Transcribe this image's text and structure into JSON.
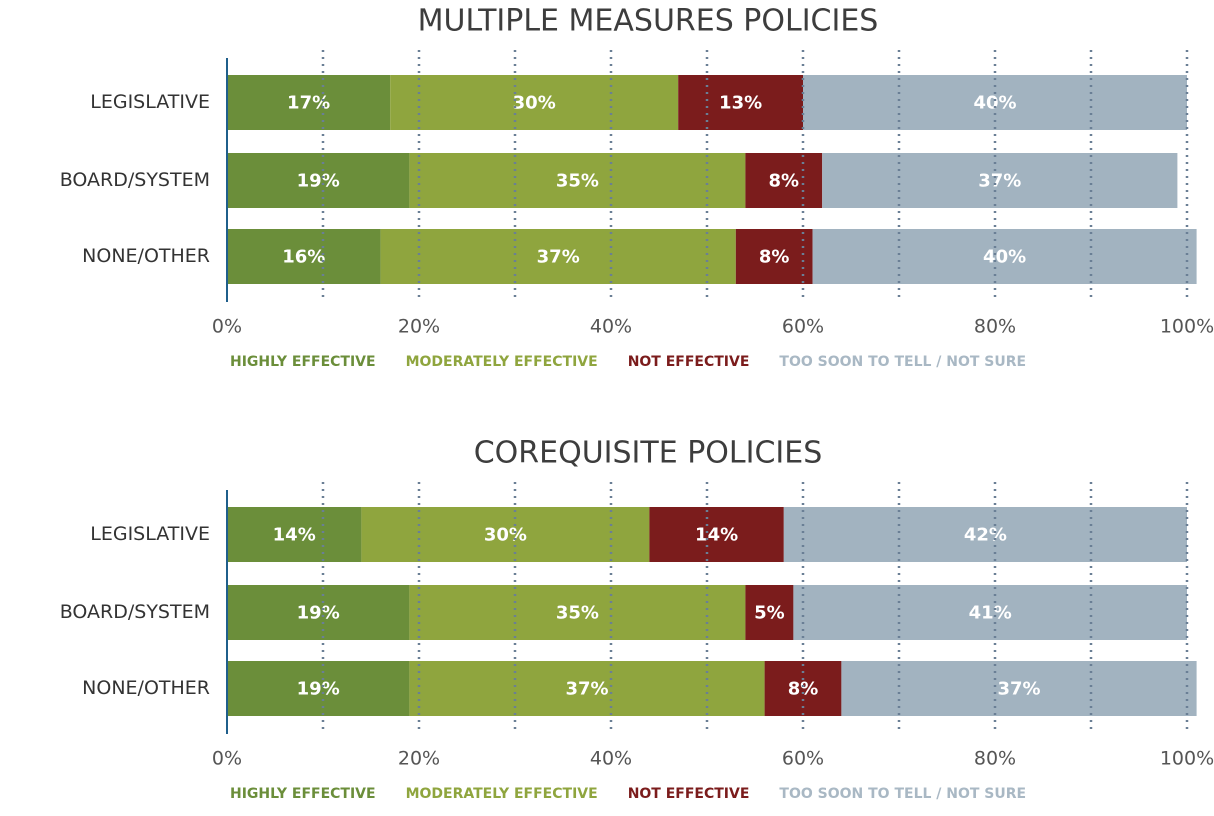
{
  "chart_data": [
    {
      "type": "bar",
      "orientation": "horizontal",
      "stacked": true,
      "title": "MULTIPLE MEASURES POLICIES",
      "categories": [
        "LEGISLATIVE",
        "BOARD/SYSTEM",
        "NONE/OTHER"
      ],
      "series": [
        {
          "name": "HIGHLY EFFECTIVE",
          "color": "#6b8e3a",
          "values": [
            17,
            19,
            16
          ],
          "value_labels": [
            "17%",
            "19%",
            "16%"
          ]
        },
        {
          "name": "MODERATELY EFFECTIVE",
          "color": "#8fa53e",
          "values": [
            30,
            35,
            37
          ],
          "value_labels": [
            "30%",
            "35%",
            "37%"
          ]
        },
        {
          "name": "NOT EFFECTIVE",
          "color": "#7b1c1c",
          "values": [
            13,
            8,
            8
          ],
          "value_labels": [
            "13%",
            "8%",
            "8%"
          ]
        },
        {
          "name": "TOO SOON TO TELL / NOT SURE",
          "color": "#a2b3c0",
          "values": [
            40,
            37,
            40
          ],
          "value_labels": [
            "40%",
            "37%",
            "40%"
          ]
        }
      ],
      "xlim": [
        0,
        100
      ],
      "xticks": [
        {
          "value": 0,
          "label": "0%"
        },
        {
          "value": 20,
          "label": "20%"
        },
        {
          "value": 40,
          "label": "40%"
        },
        {
          "value": 60,
          "label": "60%"
        },
        {
          "value": 80,
          "label": "80%"
        },
        {
          "value": 100,
          "label": "100%"
        }
      ],
      "xminorticks": [
        10,
        30,
        50,
        70,
        90
      ],
      "grid": true,
      "legend": "bottom"
    },
    {
      "type": "bar",
      "orientation": "horizontal",
      "stacked": true,
      "title": "COREQUISITE POLICIES",
      "categories": [
        "LEGISLATIVE",
        "BOARD/SYSTEM",
        "NONE/OTHER"
      ],
      "series": [
        {
          "name": "HIGHLY EFFECTIVE",
          "color": "#6b8e3a",
          "values": [
            14,
            19,
            19
          ],
          "value_labels": [
            "14%",
            "19%",
            "19%"
          ]
        },
        {
          "name": "MODERATELY EFFECTIVE",
          "color": "#8fa53e",
          "values": [
            30,
            35,
            37
          ],
          "value_labels": [
            "30%",
            "35%",
            "37%"
          ]
        },
        {
          "name": "NOT EFFECTIVE",
          "color": "#7b1c1c",
          "values": [
            14,
            5,
            8
          ],
          "value_labels": [
            "14%",
            "5%",
            "8%"
          ]
        },
        {
          "name": "TOO SOON TO TELL / NOT SURE",
          "color": "#a2b3c0",
          "values": [
            42,
            41,
            37
          ],
          "value_labels": [
            "42%",
            "41%",
            "37%"
          ]
        }
      ],
      "xlim": [
        0,
        100
      ],
      "xticks": [
        {
          "value": 0,
          "label": "0%"
        },
        {
          "value": 20,
          "label": "20%"
        },
        {
          "value": 40,
          "label": "40%"
        },
        {
          "value": 60,
          "label": "60%"
        },
        {
          "value": 80,
          "label": "80%"
        },
        {
          "value": 100,
          "label": "100%"
        }
      ],
      "xminorticks": [
        10,
        30,
        50,
        70,
        90
      ],
      "grid": true,
      "legend": "bottom"
    }
  ]
}
